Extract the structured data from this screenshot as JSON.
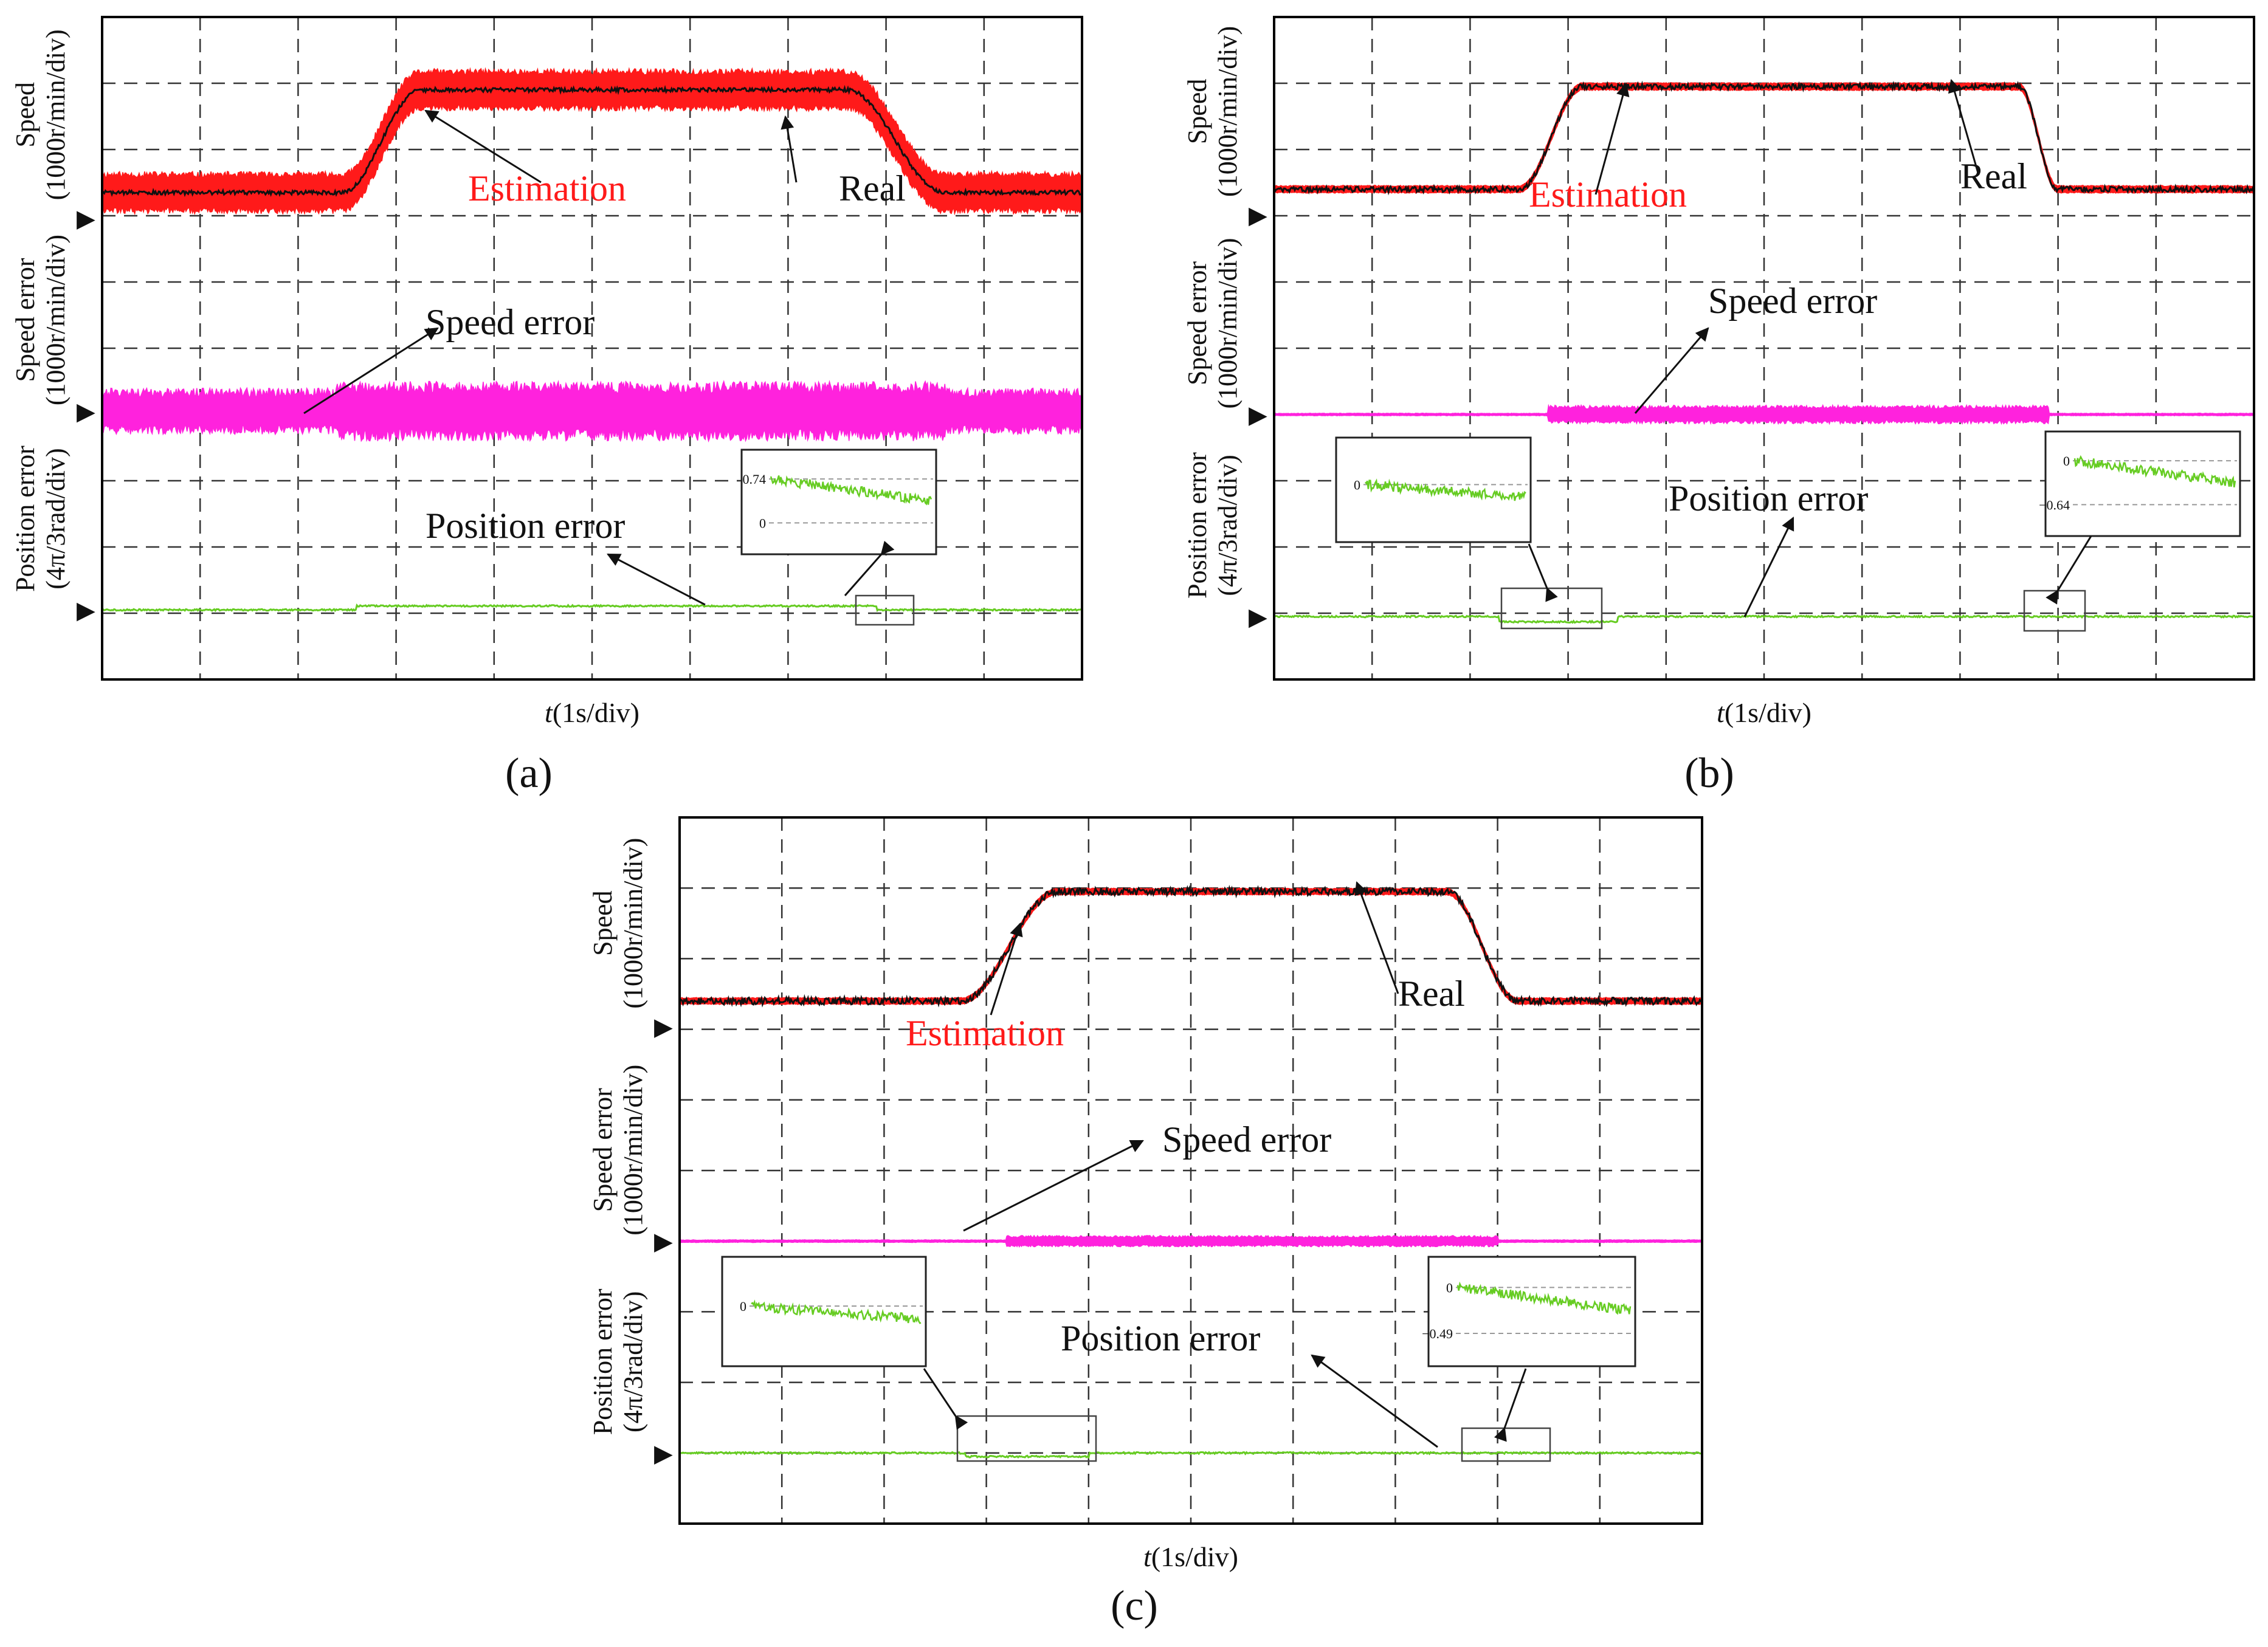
{
  "colors": {
    "estimation": "#ff1a1a",
    "real": "#111111",
    "speed_error": "#ff22dd",
    "position_error": "#66cc22",
    "grid": "#333333",
    "frame": "#000000",
    "inset_ref": "#999999"
  },
  "chart_data": [
    {
      "panel": "a",
      "panel_label": "(a)",
      "type": "line",
      "grid": {
        "x_divisions": 10,
        "y_divisions": 10,
        "style": "dashed"
      },
      "xlabel_italic": "t",
      "xlabel": "(1s/div)",
      "y_channels": [
        {
          "label_line1": "Speed",
          "label_line2": "(1000r/min/div)",
          "marker": "▶"
        },
        {
          "label_line1": "Speed error",
          "label_line2": "(1000r/min/div)",
          "marker": "▶"
        },
        {
          "label_line1": "Position error",
          "label_line2": "(4π/3rad/div)",
          "marker": "▶"
        }
      ],
      "series": [
        {
          "name": "Estimation",
          "channel": "speed",
          "kind": "noisy-band",
          "base_div": 7.35,
          "plateau_div": 8.9,
          "ramp_up_s": [
            2.45,
            3.25
          ],
          "ramp_down_s": [
            7.6,
            8.6
          ],
          "noise_div": 0.32,
          "annotation": "Estimation"
        },
        {
          "name": "Real",
          "channel": "speed",
          "kind": "line",
          "base_div": 7.35,
          "plateau_div": 8.9,
          "ramp_up_s": [
            2.45,
            3.25
          ],
          "ramp_down_s": [
            7.6,
            8.6
          ],
          "noise_div": 0.03,
          "annotation": "Real"
        },
        {
          "name": "Speed error",
          "channel": "speed_error",
          "kind": "noisy-band",
          "base_div": 4.05,
          "noise_div": 0.35,
          "noise_active_div": 0.45,
          "active_s": [
            2.4,
            8.6
          ],
          "annotation": "Speed error"
        },
        {
          "name": "Position error",
          "channel": "position_error",
          "kind": "line",
          "base_div": 1.05,
          "bump_div": 0.06,
          "active_s": [
            2.6,
            7.9
          ],
          "annotation": "Position error"
        }
      ],
      "insets": [
        {
          "ref_values": [
            "0.74",
            "0"
          ],
          "zoom_s": [
            7.7,
            8.3
          ]
        }
      ]
    },
    {
      "panel": "b",
      "panel_label": "(b)",
      "type": "line",
      "grid": {
        "x_divisions": 10,
        "y_divisions": 10,
        "style": "dashed"
      },
      "xlabel_italic": "t",
      "xlabel": "(1s/div)",
      "y_channels": [
        {
          "label_line1": "Speed",
          "label_line2": "(1000r/min/div)",
          "marker": "▶"
        },
        {
          "label_line1": "Speed error",
          "label_line2": "(1000r/min/div)",
          "marker": "▶"
        },
        {
          "label_line1": "Position error",
          "label_line2": "(4π/3rad/div)",
          "marker": "▶"
        }
      ],
      "series": [
        {
          "name": "Estimation",
          "channel": "speed",
          "kind": "noisy-band",
          "base_div": 7.4,
          "plateau_div": 8.95,
          "ramp_up_s": [
            2.5,
            3.15
          ],
          "ramp_down_s": [
            7.6,
            8.0
          ],
          "noise_div": 0.06,
          "annotation": "Estimation"
        },
        {
          "name": "Real",
          "channel": "speed",
          "kind": "line",
          "base_div": 7.4,
          "plateau_div": 8.95,
          "ramp_up_s": [
            2.5,
            3.15
          ],
          "ramp_down_s": [
            7.6,
            8.0
          ],
          "noise_div": 0.04,
          "annotation": "Real"
        },
        {
          "name": "Speed error",
          "channel": "speed_error",
          "kind": "noisy-band",
          "base_div": 4.0,
          "noise_div": 0.02,
          "noise_active_div": 0.14,
          "active_s": [
            2.8,
            7.9
          ],
          "annotation": "Speed error"
        },
        {
          "name": "Position error",
          "channel": "position_error",
          "kind": "line",
          "base_div": 0.95,
          "bump_div": -0.08,
          "active_s": [
            2.3,
            3.5
          ],
          "annotation": "Position error"
        }
      ],
      "insets": [
        {
          "ref_values": [
            "0"
          ],
          "zoom_s": [
            2.3,
            3.3
          ]
        },
        {
          "ref_values": [
            "0",
            "−0.64"
          ],
          "zoom_s": [
            7.6,
            8.3
          ]
        }
      ]
    },
    {
      "panel": "c",
      "panel_label": "(c)",
      "type": "line",
      "grid": {
        "x_divisions": 10,
        "y_divisions": 10,
        "style": "dashed"
      },
      "xlabel_italic": "t",
      "xlabel": "(1s/div)",
      "y_channels": [
        {
          "label_line1": "Speed",
          "label_line2": "(1000r/min/div)",
          "marker": "▶"
        },
        {
          "label_line1": "Speed error",
          "label_line2": "(1000r/min/div)",
          "marker": "▶"
        },
        {
          "label_line1": "Position error",
          "label_line2": "(4π/3rad/div)",
          "marker": "▶"
        }
      ],
      "series": [
        {
          "name": "Estimation",
          "channel": "speed",
          "kind": "noisy-band",
          "base_div": 7.4,
          "plateau_div": 8.95,
          "ramp_up_s": [
            2.75,
            3.7
          ],
          "ramp_down_s": [
            7.5,
            8.2
          ],
          "noise_div": 0.05,
          "annotation": "Estimation"
        },
        {
          "name": "Real",
          "channel": "speed",
          "kind": "line",
          "base_div": 7.4,
          "plateau_div": 8.95,
          "ramp_up_s": [
            2.75,
            3.7
          ],
          "ramp_down_s": [
            7.5,
            8.2
          ],
          "noise_div": 0.05,
          "annotation": "Real"
        },
        {
          "name": "Speed error",
          "channel": "speed_error",
          "kind": "noisy-band",
          "base_div": 4.0,
          "noise_div": 0.02,
          "noise_active_div": 0.08,
          "active_s": [
            3.2,
            8.0
          ],
          "annotation": "Speed error"
        },
        {
          "name": "Position error",
          "channel": "position_error",
          "kind": "line",
          "base_div": 1.0,
          "bump_div": -0.05,
          "active_s": [
            2.8,
            4.0
          ],
          "annotation": "Position error"
        }
      ],
      "insets": [
        {
          "ref_values": [
            "0"
          ],
          "zoom_s": [
            2.75,
            4.1
          ]
        },
        {
          "ref_values": [
            "0",
            "−0.49"
          ],
          "zoom_s": [
            7.7,
            8.6
          ]
        }
      ]
    }
  ]
}
